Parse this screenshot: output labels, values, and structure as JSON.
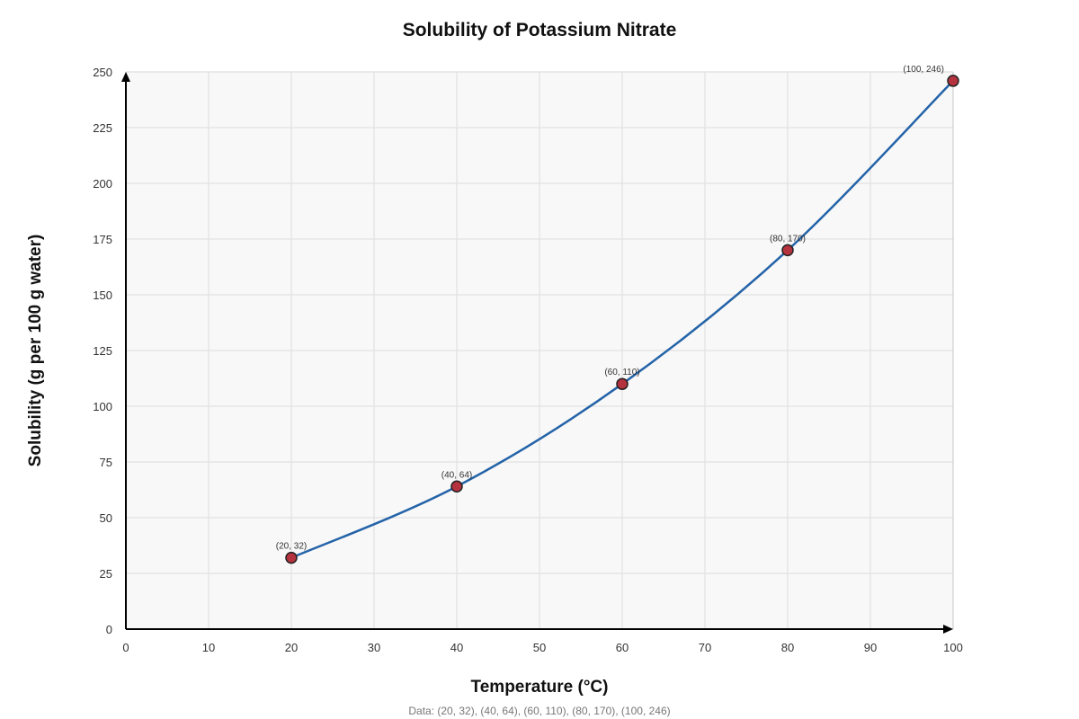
{
  "chart_data": {
    "type": "line",
    "title": "Solubility of Potassium Nitrate",
    "xlabel": "Temperature (°C)",
    "ylabel": "Solubility (g per 100 g water)",
    "xlim": [
      0,
      100
    ],
    "ylim": [
      0,
      250
    ],
    "x_ticks": [
      0,
      10,
      20,
      30,
      40,
      50,
      60,
      70,
      80,
      90,
      100
    ],
    "y_ticks": [
      0,
      25,
      50,
      75,
      100,
      125,
      150,
      175,
      200,
      225,
      250
    ],
    "x": [
      20,
      40,
      60,
      80,
      100
    ],
    "y": [
      32,
      64,
      110,
      170,
      246
    ],
    "point_labels": [
      "(20, 32)",
      "(40, 64)",
      "(60, 110)",
      "(80, 170)",
      "(100, 246)"
    ],
    "grid": true,
    "line_color": "#2463a8",
    "marker_color": "#b5323f",
    "marker_edge_color": "#222222",
    "footnote": "Data: (20, 32), (40, 64), (60, 110), (80, 170), (100, 246)"
  }
}
